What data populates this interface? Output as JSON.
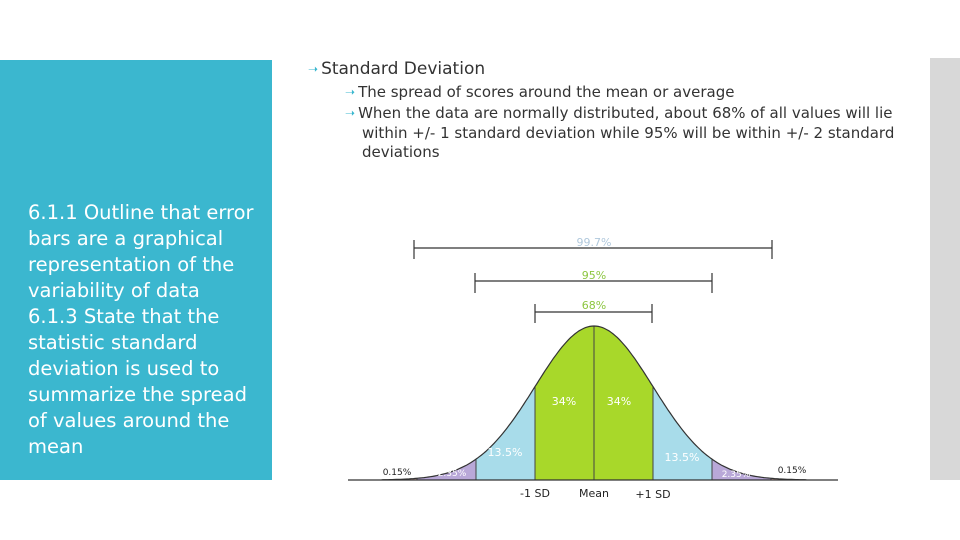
{
  "left_panel": {
    "lines": [
      "6.1.1 Outline that error bars are a graphical representation of the variability of data",
      "6.1.3 State that the statistic standard deviation is used to summarize the spread of values around the mean"
    ]
  },
  "bullets": {
    "heading": "Standard Deviation",
    "sub1": "The spread of scores around the mean or average",
    "sub2_line1": "When the data are normally distributed, about 68% of all values will lie",
    "sub2_line2": "within +/- 1 standard deviation while 95% will be within +/-  2 standard",
    "sub2_line3": "deviations"
  },
  "diagram": {
    "range_labels": {
      "r997": "99.7%",
      "r95": "95%",
      "r68": "68%"
    },
    "region_labels": {
      "center_left": "34%",
      "center_right": "34%",
      "mid_left": "13.5%",
      "mid_right": "13.5%",
      "outer_left": "2.35%",
      "outer_right": "2.35%",
      "tail_left": "0.15%",
      "tail_right": "0.15%"
    },
    "axis_labels": {
      "minus_sd": "-1 SD",
      "mean": "Mean",
      "plus_sd": "+1 SD"
    },
    "colors": {
      "center": "#a8d82a",
      "mid": "#a8dcea",
      "outer": "#b9a8d8",
      "tail": "#f0c0b8",
      "green_text": "#8cc63f",
      "light_text": "#b0c8dc"
    }
  }
}
